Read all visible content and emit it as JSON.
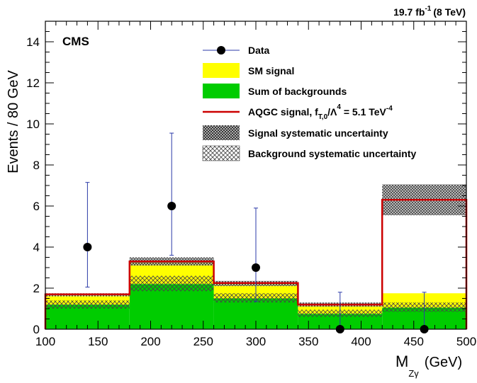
{
  "chart_data": {
    "type": "bar",
    "experiment_label": "CMS",
    "lumi_label": "19.7 fb",
    "lumi_exp": "-1",
    "lumi_energy": "(8 TeV)",
    "ylabel": "Events / 80 GeV",
    "xlabel": {
      "main": "M",
      "sub": "Zγ",
      "unit": "(GeV)"
    },
    "xlim": [
      100,
      500
    ],
    "ylim": [
      0,
      15
    ],
    "x_ticks": [
      100,
      150,
      200,
      250,
      300,
      350,
      400,
      450,
      500
    ],
    "y_ticks": [
      0,
      2,
      4,
      6,
      8,
      10,
      12,
      14
    ],
    "bins": [
      {
        "low": 100,
        "high": 180,
        "backgrounds": 1.2,
        "sm_signal": 0.45,
        "aqgc": 1.7,
        "bkg_unc": [
          1.0,
          1.4
        ],
        "sig_unc": [
          1.6,
          1.75
        ],
        "data": 4,
        "data_err": [
          2.05,
          7.15
        ]
      },
      {
        "low": 180,
        "high": 260,
        "backgrounds": 2.2,
        "sm_signal": 1.1,
        "aqgc": 3.3,
        "bkg_unc": [
          1.85,
          2.6
        ],
        "sig_unc": [
          3.1,
          3.5
        ],
        "data": 6,
        "data_err": [
          3.6,
          9.55
        ]
      },
      {
        "low": 260,
        "high": 340,
        "backgrounds": 1.5,
        "sm_signal": 0.7,
        "aqgc": 2.25,
        "bkg_unc": [
          1.3,
          1.75
        ],
        "sig_unc": [
          2.1,
          2.35
        ],
        "data": 3,
        "data_err": [
          1.35,
          5.9
        ]
      },
      {
        "low": 340,
        "high": 420,
        "backgrounds": 0.75,
        "sm_signal": 0.45,
        "aqgc": 1.2,
        "bkg_unc": [
          0.6,
          0.95
        ],
        "sig_unc": [
          1.1,
          1.3
        ],
        "data": 0,
        "data_err": [
          0,
          1.8
        ]
      },
      {
        "low": 420,
        "high": 500,
        "backgrounds": 1.05,
        "sm_signal": 0.7,
        "aqgc": 6.3,
        "bkg_unc": [
          0.85,
          1.3
        ],
        "sig_unc": [
          5.55,
          7.05
        ],
        "data": 0,
        "data_err": [
          0,
          1.8
        ]
      }
    ],
    "legend": {
      "placement": "top-center",
      "entries": [
        {
          "key": "data",
          "label": "Data"
        },
        {
          "key": "sm",
          "label": "SM signal",
          "color": "#ffff00"
        },
        {
          "key": "bkg",
          "label": "Sum of backgrounds",
          "color": "#00cc00"
        },
        {
          "key": "aqgc",
          "label": "AQGC signal, f",
          "sub": "T,0",
          "mid": "/Λ",
          "sup": "4",
          "tail": " = 5.1 TeV",
          "tail_sup": "-4",
          "color": "#cc0000"
        },
        {
          "key": "sig_unc",
          "label": "Signal systematic uncertainty"
        },
        {
          "key": "bkg_unc",
          "label": "Background systematic uncertainty"
        }
      ]
    },
    "colors": {
      "backgrounds": "#00cc00",
      "sm_signal": "#ffff00",
      "aqgc": "#cc0000",
      "data": "#000000",
      "data_err": "#2b3aa8"
    }
  }
}
